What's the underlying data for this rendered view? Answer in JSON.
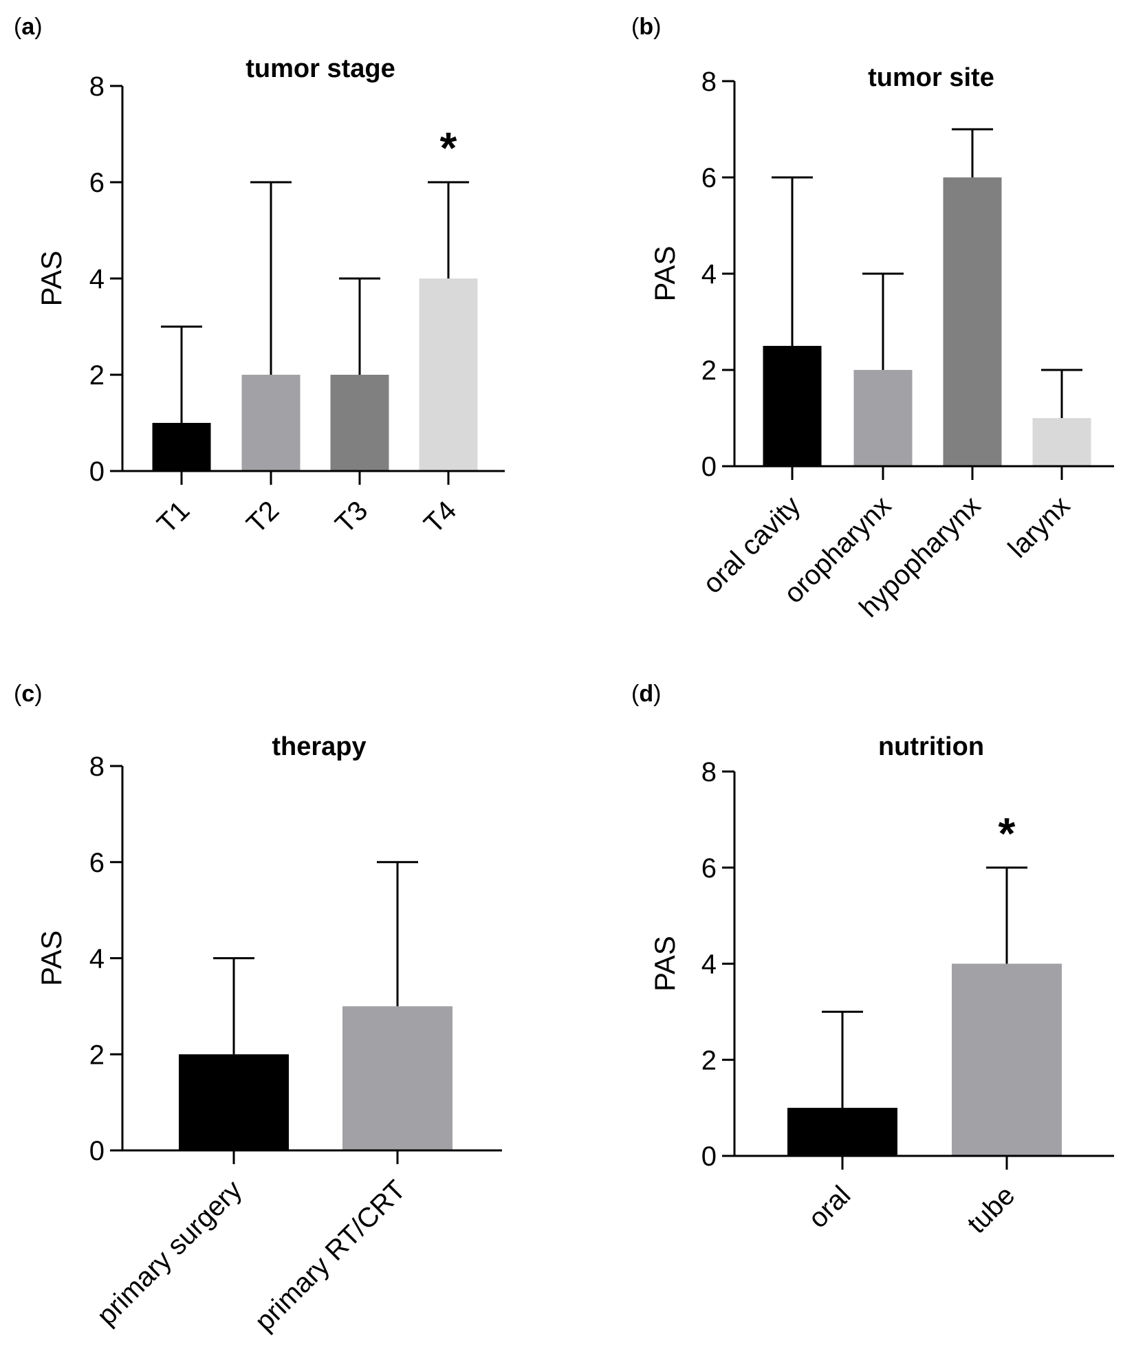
{
  "chart_data": [
    {
      "panel": "a",
      "type": "bar",
      "title": "tumor stage",
      "ylabel": "PAS",
      "xlabel": "",
      "ylim": [
        0,
        8
      ],
      "yticks": [
        0,
        2,
        4,
        6,
        8
      ],
      "categories": [
        "T1",
        "T2",
        "T3",
        "T4"
      ],
      "values": [
        1,
        2,
        2,
        4
      ],
      "error_upper": [
        3,
        6,
        4,
        6
      ],
      "colors": [
        "#000000",
        "#a2a1a5",
        "#808080",
        "#d9d9d9"
      ],
      "significance": [
        "",
        "",
        "",
        "*"
      ]
    },
    {
      "panel": "b",
      "type": "bar",
      "title": "tumor site",
      "ylabel": "PAS",
      "xlabel": "",
      "ylim": [
        0,
        8
      ],
      "yticks": [
        0,
        2,
        4,
        6,
        8
      ],
      "categories": [
        "oral cavity",
        "oropharynx",
        "hypopharynx",
        "larynx"
      ],
      "values": [
        2.5,
        2,
        6,
        1
      ],
      "error_upper": [
        6,
        4,
        7,
        2
      ],
      "colors": [
        "#000000",
        "#a2a1a5",
        "#808080",
        "#d9d9d9"
      ],
      "significance": [
        "",
        "",
        "",
        ""
      ]
    },
    {
      "panel": "c",
      "type": "bar",
      "title": "therapy",
      "ylabel": "PAS",
      "xlabel": "",
      "ylim": [
        0,
        8
      ],
      "yticks": [
        0,
        2,
        4,
        6,
        8
      ],
      "categories": [
        "primary surgery",
        "primary RT/CRT"
      ],
      "values": [
        2,
        3
      ],
      "error_upper": [
        4,
        6
      ],
      "colors": [
        "#000000",
        "#a2a1a5"
      ],
      "significance": [
        "",
        ""
      ]
    },
    {
      "panel": "d",
      "type": "bar",
      "title": "nutrition",
      "ylabel": "PAS",
      "xlabel": "",
      "ylim": [
        0,
        8
      ],
      "yticks": [
        0,
        2,
        4,
        6,
        8
      ],
      "categories": [
        "oral",
        "tube"
      ],
      "values": [
        1,
        4
      ],
      "error_upper": [
        3,
        6
      ],
      "colors": [
        "#000000",
        "#a2a1a5"
      ],
      "significance": [
        "",
        "*"
      ]
    }
  ]
}
